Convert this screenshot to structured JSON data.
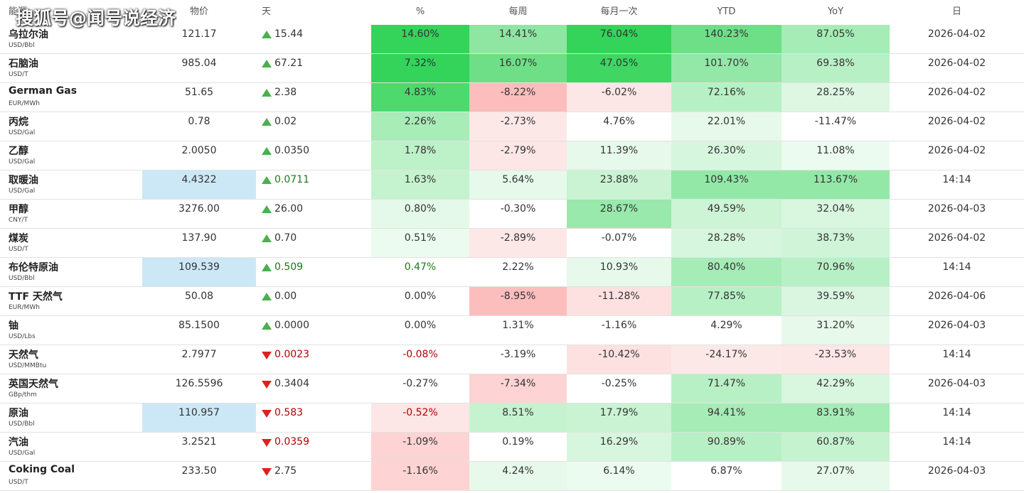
{
  "watermark": "搜狐号@闻号说经济",
  "table": {
    "header": [
      "能源",
      "物价",
      "天",
      "%",
      "每周",
      "每月一次",
      "YTD",
      "YoY",
      "日"
    ],
    "rows": [
      {
        "name": "乌拉尔油",
        "unit": "USD/Bbl",
        "price": "121.17",
        "trend": "up",
        "day": "15.44",
        "pct": "14.60%",
        "week": "14.41%",
        "month": "76.04%",
        "ytd": "140.23%",
        "yoy": "87.05%",
        "date": "2026-04-02",
        "bg": [
          "#ffffff",
          "#ffffff",
          "#34d35a",
          "#8ee6a2",
          "#34d35a",
          "#6fdf87",
          "#a5ecb6"
        ],
        "fg": [
          "#333333",
          "#333333",
          "#333333"
        ]
      },
      {
        "name": "石脑油",
        "unit": "USD/T",
        "price": "985.04",
        "trend": "up",
        "day": "67.21",
        "pct": "7.32%",
        "week": "16.07%",
        "month": "47.05%",
        "ytd": "101.70%",
        "yoy": "69.38%",
        "date": "2026-04-02",
        "bg": [
          "#ffffff",
          "#ffffff",
          "#34d35a",
          "#6fdf87",
          "#3fd662",
          "#93e8a7",
          "#b8f0c5"
        ],
        "fg": [
          "#333333",
          "#333333",
          "#333333"
        ]
      },
      {
        "name": "German Gas",
        "unit": "EUR/MWh",
        "price": "51.65",
        "trend": "up",
        "day": "2.38",
        "pct": "4.83%",
        "week": "-8.22%",
        "month": "-6.02%",
        "ytd": "72.16%",
        "yoy": "28.25%",
        "date": "2026-04-02",
        "bg": [
          "#ffffff",
          "#ffffff",
          "#4ed96e",
          "#fcbdbd",
          "#fde6e6",
          "#b8f0c5",
          "#ddf7e3"
        ],
        "fg": [
          "#333333",
          "#333333",
          "#333333"
        ]
      },
      {
        "name": "丙烷",
        "unit": "USD/Gal",
        "price": "0.78",
        "trend": "up",
        "day": "0.02",
        "pct": "2.26%",
        "week": "-2.73%",
        "month": "4.76%",
        "ytd": "22.01%",
        "yoy": "-11.47%",
        "date": "2026-04-02",
        "bg": [
          "#ffffff",
          "#ffffff",
          "#a8ecb7",
          "#fde8e8",
          "#ffffff",
          "#e6f9ea",
          "#ffffff"
        ],
        "fg": [
          "#333333",
          "#333333",
          "#333333"
        ]
      },
      {
        "name": "乙醇",
        "unit": "USD/Gal",
        "price": "2.0050",
        "trend": "up",
        "day": "0.0350",
        "pct": "1.78%",
        "week": "-2.79%",
        "month": "11.39%",
        "ytd": "26.30%",
        "yoy": "11.08%",
        "date": "2026-04-02",
        "bg": [
          "#ffffff",
          "#ffffff",
          "#bdf1c8",
          "#fde6e6",
          "#e6f9ea",
          "#d7f6de",
          "#ecfbef"
        ],
        "fg": [
          "#333333",
          "#333333",
          "#333333"
        ]
      },
      {
        "name": "取暖油",
        "unit": "USD/Gal",
        "price": "4.4322",
        "trend": "up",
        "day": "0.0711",
        "pct": "1.63%",
        "week": "5.64%",
        "month": "23.88%",
        "ytd": "109.43%",
        "yoy": "113.67%",
        "date": "14:14",
        "bg": [
          "#cce8f7",
          "#ffffff",
          "#c5f3cf",
          "#e6f9ea",
          "#c9f3d2",
          "#93e8a7",
          "#93e8a7"
        ],
        "fg": [
          "#333333",
          "#1a7a1a",
          "#333333"
        ]
      },
      {
        "name": "甲醇",
        "unit": "CNY/T",
        "price": "3276.00",
        "trend": "up",
        "day": "26.00",
        "pct": "0.80%",
        "week": "-0.30%",
        "month": "28.67%",
        "ytd": "49.59%",
        "yoy": "32.04%",
        "date": "2026-04-03",
        "bg": [
          "#ffffff",
          "#ffffff",
          "#e4f9e9",
          "#ffffff",
          "#98e9ab",
          "#cdf4d5",
          "#d9f6df"
        ],
        "fg": [
          "#333333",
          "#333333",
          "#333333"
        ]
      },
      {
        "name": "煤炭",
        "unit": "USD/T",
        "price": "137.90",
        "trend": "up",
        "day": "0.70",
        "pct": "0.51%",
        "week": "-2.89%",
        "month": "-0.07%",
        "ytd": "28.28%",
        "yoy": "38.73%",
        "date": "2026-04-02",
        "bg": [
          "#ffffff",
          "#ffffff",
          "#ecfbef",
          "#fde8e8",
          "#ffffff",
          "#d7f6de",
          "#cff4d7"
        ],
        "fg": [
          "#333333",
          "#333333",
          "#333333"
        ]
      },
      {
        "name": "布伦特原油",
        "unit": "USD/Bbl",
        "price": "109.539",
        "trend": "up",
        "day": "0.509",
        "pct": "0.47%",
        "week": "2.22%",
        "month": "10.93%",
        "ytd": "80.40%",
        "yoy": "70.96%",
        "date": "14:14",
        "bg": [
          "#cce8f7",
          "#ffffff",
          "#ffffff",
          "#ffffff",
          "#e6f9ea",
          "#a5ecb6",
          "#b8f0c5"
        ],
        "fg": [
          "#333333",
          "#1a7a1a",
          "#1a7a1a"
        ]
      },
      {
        "name": "TTF 天然气",
        "unit": "EUR/MWh",
        "price": "50.08",
        "trend": "up",
        "day": "0.00",
        "pct": "0.00%",
        "week": "-8.95%",
        "month": "-11.28%",
        "ytd": "77.85%",
        "yoy": "39.59%",
        "date": "2026-04-06",
        "bg": [
          "#ffffff",
          "#ffffff",
          "#ffffff",
          "#fcbdbd",
          "#fde1e1",
          "#b8f0c5",
          "#daf6e0"
        ],
        "fg": [
          "#333333",
          "#333333",
          "#333333"
        ]
      },
      {
        "name": "铀",
        "unit": "USD/Lbs",
        "price": "85.1500",
        "trend": "up",
        "day": "0.0000",
        "pct": "0.00%",
        "week": "1.31%",
        "month": "-1.16%",
        "ytd": "4.29%",
        "yoy": "31.20%",
        "date": "2026-04-03",
        "bg": [
          "#ffffff",
          "#ffffff",
          "#ffffff",
          "#ffffff",
          "#ffffff",
          "#ffffff",
          "#e6f9ea"
        ],
        "fg": [
          "#333333",
          "#333333",
          "#333333"
        ]
      },
      {
        "name": "天然气",
        "unit": "USD/MMBtu",
        "price": "2.7977",
        "trend": "down",
        "day": "0.0023",
        "pct": "-0.08%",
        "week": "-3.19%",
        "month": "-10.42%",
        "ytd": "-24.17%",
        "yoy": "-23.53%",
        "date": "14:14",
        "bg": [
          "#ffffff",
          "#ffffff",
          "#ffffff",
          "#ffffff",
          "#fde1e1",
          "#fde8e8",
          "#fde6e6"
        ],
        "fg": [
          "#333333",
          "#b00000",
          "#b00000"
        ]
      },
      {
        "name": "英国天然气",
        "unit": "GBp/thm",
        "price": "126.5596",
        "trend": "down",
        "day": "0.3404",
        "pct": "-0.27%",
        "week": "-7.34%",
        "month": "-0.25%",
        "ytd": "71.47%",
        "yoy": "42.29%",
        "date": "2026-04-03",
        "bg": [
          "#ffffff",
          "#ffffff",
          "#ffffff",
          "#fdd3d3",
          "#ffffff",
          "#b8f0c5",
          "#d9f6df"
        ],
        "fg": [
          "#333333",
          "#333333",
          "#333333"
        ]
      },
      {
        "name": "原油",
        "unit": "USD/Bbl",
        "price": "110.957",
        "trend": "down",
        "day": "0.583",
        "pct": "-0.52%",
        "week": "8.51%",
        "month": "17.79%",
        "ytd": "94.41%",
        "yoy": "83.91%",
        "date": "14:14",
        "bg": [
          "#cce8f7",
          "#ffffff",
          "#fde6e6",
          "#c5f3cf",
          "#c9f3d2",
          "#a5ecb6",
          "#a5ecb6"
        ],
        "fg": [
          "#333333",
          "#b00000",
          "#b00000"
        ]
      },
      {
        "name": "汽油",
        "unit": "USD/Gal",
        "price": "3.2521",
        "trend": "down",
        "day": "0.0359",
        "pct": "-1.09%",
        "week": "0.19%",
        "month": "16.29%",
        "ytd": "90.89%",
        "yoy": "60.87%",
        "date": "14:14",
        "bg": [
          "#ffffff",
          "#ffffff",
          "#fdd3d3",
          "#ffffff",
          "#d7f6de",
          "#b8f0c5",
          "#c5f3cf"
        ],
        "fg": [
          "#333333",
          "#b00000",
          "#333333"
        ]
      },
      {
        "name": "Coking Coal",
        "unit": "USD/T",
        "price": "233.50",
        "trend": "down",
        "day": "2.75",
        "pct": "-1.16%",
        "week": "4.24%",
        "month": "6.14%",
        "ytd": "6.87%",
        "yoy": "27.07%",
        "date": "2026-04-03",
        "bg": [
          "#ffffff",
          "#ffffff",
          "#fdd3d3",
          "#e6f9ea",
          "#ecfbef",
          "#ffffff",
          "#e6f9ea"
        ],
        "fg": [
          "#333333",
          "#333333",
          "#333333"
        ]
      }
    ]
  }
}
